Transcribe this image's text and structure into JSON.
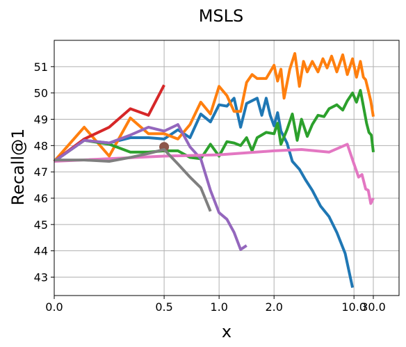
{
  "chart_data": {
    "type": "line",
    "title": "MSLS",
    "xlabel": "x",
    "ylabel": "Recall@1",
    "x_scale": "reciprocal",
    "x_ticks": [
      0.0,
      0.5,
      1.0,
      2.0,
      10.0,
      30.0
    ],
    "x_tick_labels": [
      "0.0",
      "0.5",
      "1.0",
      "2.0",
      "10.0",
      "30.0"
    ],
    "y_ticks": [
      43,
      44,
      45,
      46,
      47,
      48,
      49,
      50,
      51
    ],
    "y_tick_labels": [
      "43",
      "44",
      "45",
      "46",
      "47",
      "48",
      "49",
      "50",
      "51"
    ],
    "ylim": [
      42.3,
      52.0
    ],
    "grid": true,
    "series": [
      {
        "color": "#1f77b4",
        "points": [
          [
            0.0,
            47.4
          ],
          [
            0.1,
            48.2
          ],
          [
            0.2,
            48.1
          ],
          [
            0.3,
            48.3
          ],
          [
            0.4,
            48.3
          ],
          [
            0.5,
            48.25
          ],
          [
            0.6,
            48.6
          ],
          [
            0.7,
            48.3
          ],
          [
            0.8,
            49.2
          ],
          [
            0.9,
            48.9
          ],
          [
            1.0,
            49.55
          ],
          [
            1.1,
            49.5
          ],
          [
            1.2,
            49.8
          ],
          [
            1.3,
            48.7
          ],
          [
            1.4,
            49.6
          ],
          [
            1.6,
            49.8
          ],
          [
            1.7,
            49.15
          ],
          [
            1.8,
            49.8
          ],
          [
            1.9,
            49.15
          ],
          [
            2.0,
            48.75
          ],
          [
            2.1,
            49.25
          ],
          [
            2.2,
            48.55
          ],
          [
            2.4,
            48.1
          ],
          [
            2.6,
            47.4
          ],
          [
            2.9,
            47.1
          ],
          [
            3.2,
            46.7
          ],
          [
            3.6,
            46.3
          ],
          [
            4.2,
            45.7
          ],
          [
            5.0,
            45.3
          ],
          [
            6.0,
            44.7
          ],
          [
            7.5,
            43.9
          ],
          [
            9.5,
            42.6
          ]
        ],
        "line_width": 4
      },
      {
        "color": "#ff7f0e",
        "points": [
          [
            0.0,
            47.4
          ],
          [
            0.1,
            48.7
          ],
          [
            0.2,
            47.6
          ],
          [
            0.3,
            49.05
          ],
          [
            0.4,
            48.45
          ],
          [
            0.5,
            48.45
          ],
          [
            0.6,
            48.25
          ],
          [
            0.7,
            48.8
          ],
          [
            0.8,
            49.65
          ],
          [
            0.9,
            49.2
          ],
          [
            1.0,
            50.25
          ],
          [
            1.1,
            49.9
          ],
          [
            1.2,
            49.3
          ],
          [
            1.3,
            49.3
          ],
          [
            1.4,
            50.4
          ],
          [
            1.5,
            50.7
          ],
          [
            1.6,
            50.55
          ],
          [
            1.8,
            50.55
          ],
          [
            2.0,
            51.05
          ],
          [
            2.1,
            50.45
          ],
          [
            2.2,
            50.9
          ],
          [
            2.3,
            49.8
          ],
          [
            2.5,
            50.9
          ],
          [
            2.7,
            51.5
          ],
          [
            2.9,
            50.25
          ],
          [
            3.1,
            51.2
          ],
          [
            3.3,
            50.8
          ],
          [
            3.6,
            51.2
          ],
          [
            4.0,
            50.8
          ],
          [
            4.4,
            51.3
          ],
          [
            4.8,
            50.95
          ],
          [
            5.3,
            51.4
          ],
          [
            6.0,
            50.8
          ],
          [
            7.0,
            51.45
          ],
          [
            8.0,
            50.7
          ],
          [
            9.5,
            51.3
          ],
          [
            11,
            50.6
          ],
          [
            13,
            51.2
          ],
          [
            15,
            50.6
          ],
          [
            17,
            50.5
          ],
          [
            20,
            50.1
          ],
          [
            24,
            49.7
          ],
          [
            30,
            49.1
          ]
        ],
        "line_width": 4
      },
      {
        "color": "#2ca02c",
        "points": [
          [
            0.0,
            47.4
          ],
          [
            0.1,
            48.2
          ],
          [
            0.2,
            48.05
          ],
          [
            0.3,
            47.75
          ],
          [
            0.4,
            47.75
          ],
          [
            0.5,
            47.8
          ],
          [
            0.6,
            47.8
          ],
          [
            0.7,
            47.55
          ],
          [
            0.8,
            47.5
          ],
          [
            0.9,
            48.05
          ],
          [
            1.0,
            47.6
          ],
          [
            1.1,
            48.15
          ],
          [
            1.2,
            48.1
          ],
          [
            1.3,
            48.0
          ],
          [
            1.4,
            48.3
          ],
          [
            1.5,
            47.8
          ],
          [
            1.6,
            48.3
          ],
          [
            1.8,
            48.5
          ],
          [
            2.0,
            48.45
          ],
          [
            2.1,
            48.85
          ],
          [
            2.2,
            48.05
          ],
          [
            2.4,
            48.6
          ],
          [
            2.6,
            49.2
          ],
          [
            2.8,
            48.2
          ],
          [
            3.0,
            49.0
          ],
          [
            3.3,
            48.35
          ],
          [
            3.6,
            48.8
          ],
          [
            4.0,
            49.15
          ],
          [
            4.5,
            49.1
          ],
          [
            5.0,
            49.4
          ],
          [
            6.0,
            49.55
          ],
          [
            7.0,
            49.35
          ],
          [
            8.0,
            49.7
          ],
          [
            9.5,
            50.0
          ],
          [
            11,
            49.65
          ],
          [
            13,
            50.1
          ],
          [
            15,
            49.5
          ],
          [
            18,
            48.85
          ],
          [
            21,
            48.5
          ],
          [
            25,
            48.4
          ],
          [
            30,
            47.75
          ]
        ],
        "line_width": 4
      },
      {
        "color": "#d62728",
        "points": [
          [
            0.0,
            47.4
          ],
          [
            0.1,
            48.25
          ],
          [
            0.2,
            48.7
          ],
          [
            0.3,
            49.4
          ],
          [
            0.4,
            49.15
          ],
          [
            0.5,
            50.3
          ]
        ],
        "line_width": 4
      },
      {
        "color": "#9467bd",
        "points": [
          [
            0.0,
            47.4
          ],
          [
            0.1,
            48.2
          ],
          [
            0.2,
            48.1
          ],
          [
            0.3,
            48.4
          ],
          [
            0.4,
            48.7
          ],
          [
            0.5,
            48.55
          ],
          [
            0.6,
            48.8
          ],
          [
            0.7,
            47.95
          ],
          [
            0.8,
            47.5
          ],
          [
            0.9,
            46.3
          ],
          [
            1.0,
            45.45
          ],
          [
            1.1,
            45.2
          ],
          [
            1.2,
            44.7
          ],
          [
            1.3,
            44.05
          ],
          [
            1.4,
            44.2
          ]
        ],
        "line_width": 4
      },
      {
        "color": "#8c564b",
        "points": [
          [
            0.5,
            47.95
          ]
        ],
        "marker": "circle",
        "line_width": 0
      },
      {
        "color": "#e377c2",
        "points": [
          [
            0.0,
            47.4
          ],
          [
            0.5,
            47.6
          ],
          [
            1.0,
            47.65
          ],
          [
            2.0,
            47.8
          ],
          [
            3.0,
            47.85
          ],
          [
            5.0,
            47.75
          ],
          [
            8.0,
            48.05
          ],
          [
            10.0,
            47.3
          ],
          [
            12.0,
            46.8
          ],
          [
            14.0,
            46.9
          ],
          [
            17.0,
            46.35
          ],
          [
            20.0,
            46.3
          ],
          [
            24.0,
            45.8
          ],
          [
            30.0,
            46.0
          ]
        ],
        "line_width": 4
      },
      {
        "color": "#7f7f7f",
        "points": [
          [
            0.0,
            47.45
          ],
          [
            0.1,
            47.45
          ],
          [
            0.2,
            47.4
          ],
          [
            0.3,
            47.55
          ],
          [
            0.4,
            47.7
          ],
          [
            0.5,
            47.85
          ],
          [
            0.6,
            47.3
          ],
          [
            0.7,
            46.8
          ],
          [
            0.8,
            46.4
          ],
          [
            0.9,
            45.5
          ]
        ],
        "line_width": 4
      }
    ]
  }
}
